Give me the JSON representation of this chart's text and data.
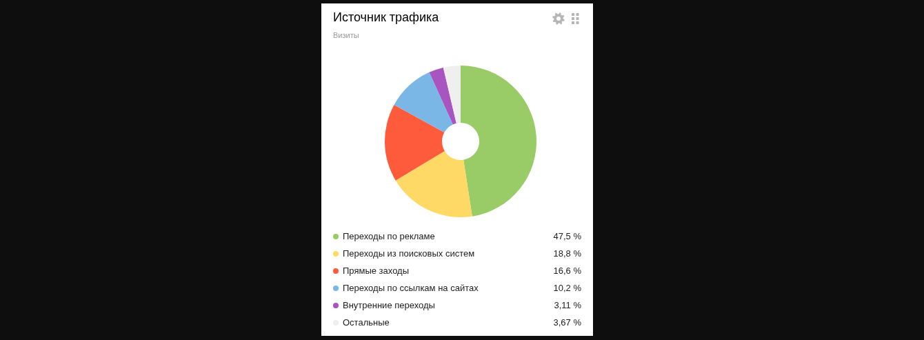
{
  "chart_data": {
    "type": "donut",
    "title": "Источник трафика",
    "subtitle": "Визиты",
    "categories": [
      "Переходы по рекламе",
      "Переходы из поисковых систем",
      "Прямые заходы",
      "Переходы по ссылкам на сайтах",
      "Внутренние переходы",
      "Остальные"
    ],
    "values": [
      47.5,
      18.8,
      16.6,
      10.2,
      3.11,
      3.67
    ],
    "colors": [
      "#99cc66",
      "#ffd966",
      "#fe5b3c",
      "#7ab6e6",
      "#a855c0",
      "#efefef"
    ],
    "value_labels": [
      "47,5 %",
      "18,8 %",
      "16,6 %",
      "10,2 %",
      "3,11 %",
      "3,67 %"
    ],
    "legend": "bottom"
  }
}
